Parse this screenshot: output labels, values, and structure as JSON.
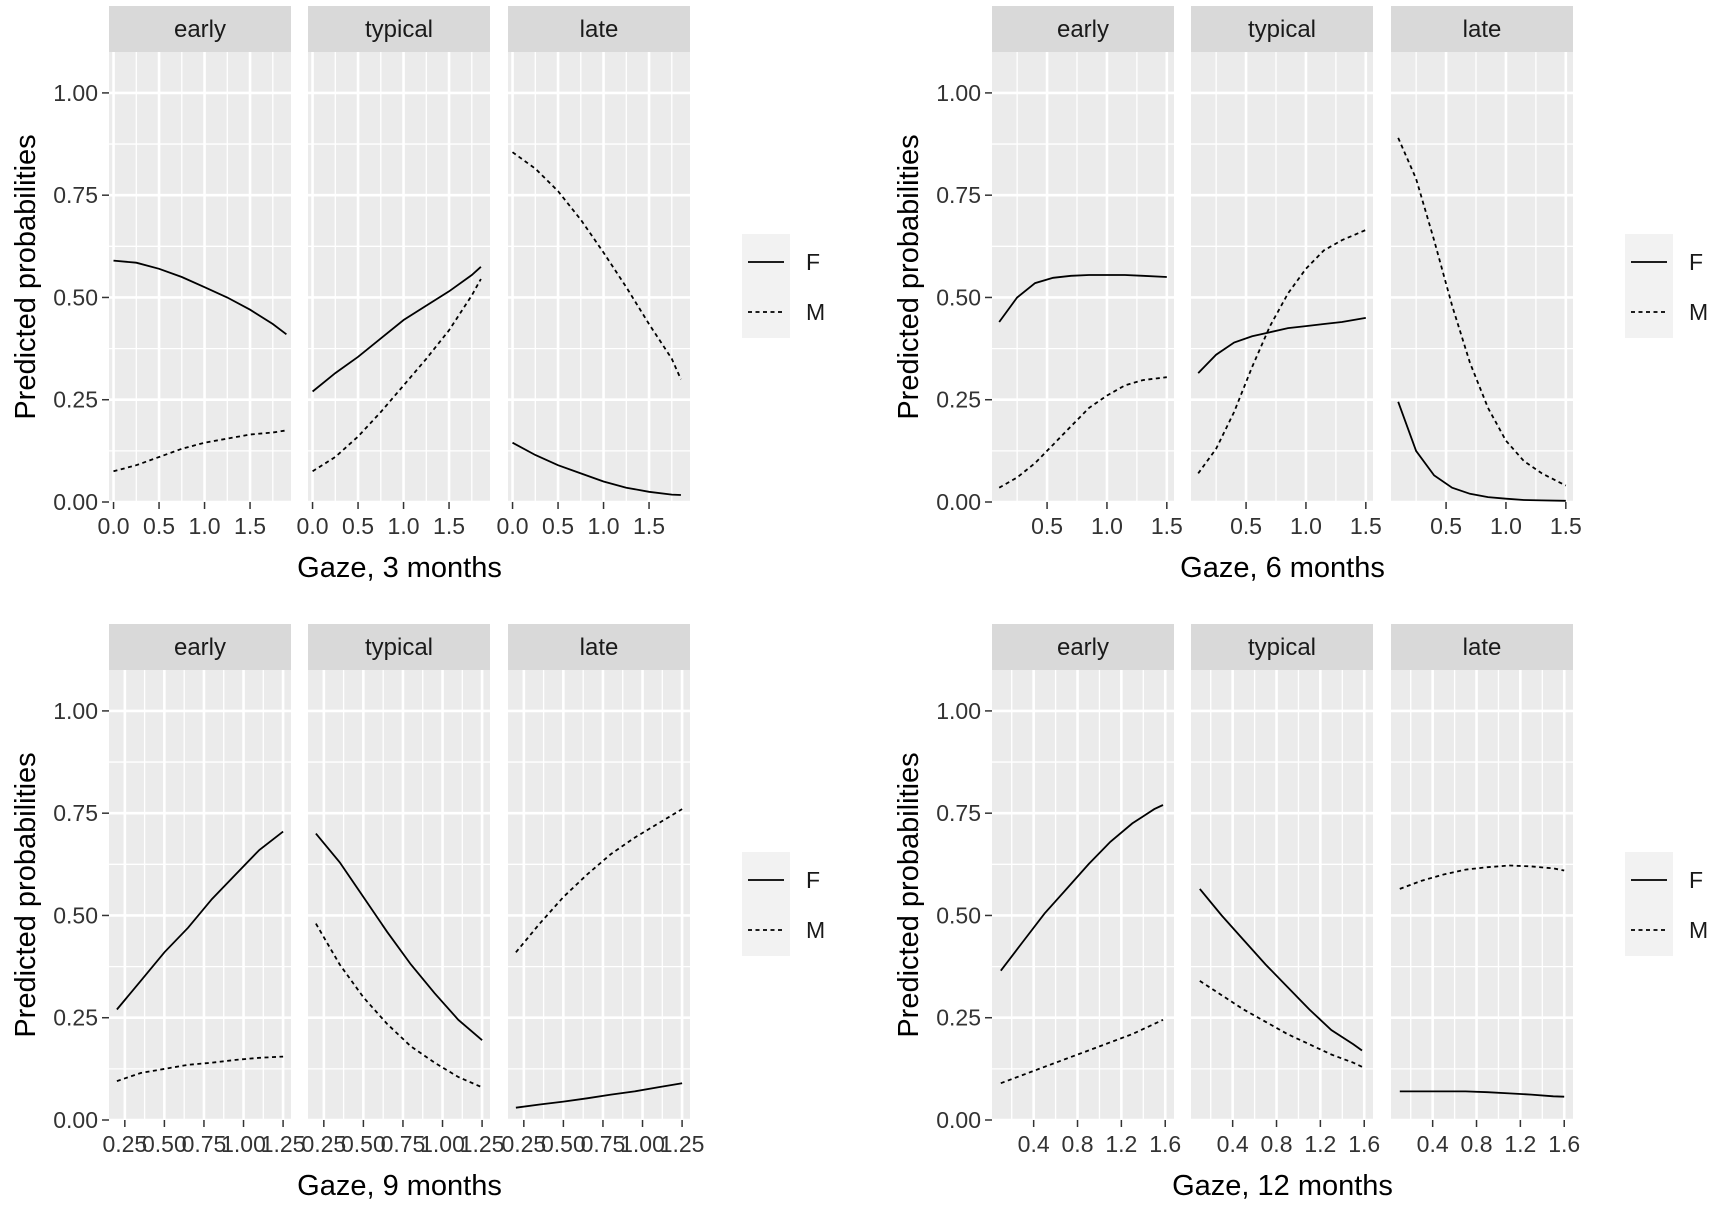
{
  "chart_data": [
    {
      "type": "line",
      "xlabel": "Gaze, 3 months",
      "ylabel": "Predicted probabilities",
      "ylim": [
        0,
        1.1
      ],
      "yticks": [
        "0.00",
        "0.25",
        "0.50",
        "0.75",
        "1.00"
      ],
      "xlim": [
        -0.05,
        1.95
      ],
      "xticks": [
        "0.0",
        "0.5",
        "1.0",
        "1.5"
      ],
      "grid": true,
      "legend": {
        "position": "right",
        "entries": [
          "F",
          "M"
        ]
      },
      "facets": [
        {
          "label": "early",
          "series": [
            {
              "name": "F",
              "x": [
                0.0,
                0.25,
                0.5,
                0.75,
                1.0,
                1.25,
                1.5,
                1.75,
                1.9
              ],
              "values": [
                0.59,
                0.585,
                0.57,
                0.55,
                0.525,
                0.5,
                0.47,
                0.435,
                0.41
              ]
            },
            {
              "name": "M",
              "x": [
                0.0,
                0.25,
                0.5,
                0.75,
                1.0,
                1.25,
                1.5,
                1.75,
                1.9
              ],
              "values": [
                0.075,
                0.09,
                0.11,
                0.13,
                0.145,
                0.155,
                0.165,
                0.17,
                0.175
              ]
            }
          ]
        },
        {
          "label": "typical",
          "series": [
            {
              "name": "F",
              "x": [
                0.0,
                0.25,
                0.5,
                0.75,
                1.0,
                1.25,
                1.5,
                1.75,
                1.85
              ],
              "values": [
                0.27,
                0.315,
                0.355,
                0.4,
                0.445,
                0.48,
                0.515,
                0.555,
                0.575
              ]
            },
            {
              "name": "M",
              "x": [
                0.0,
                0.25,
                0.5,
                0.75,
                1.0,
                1.25,
                1.5,
                1.75,
                1.85
              ],
              "values": [
                0.075,
                0.11,
                0.16,
                0.22,
                0.285,
                0.35,
                0.42,
                0.505,
                0.545
              ]
            }
          ]
        },
        {
          "label": "late",
          "series": [
            {
              "name": "F",
              "x": [
                0.0,
                0.25,
                0.5,
                0.75,
                1.0,
                1.25,
                1.5,
                1.75,
                1.85
              ],
              "values": [
                0.145,
                0.115,
                0.09,
                0.07,
                0.05,
                0.035,
                0.025,
                0.018,
                0.017
              ]
            },
            {
              "name": "M",
              "x": [
                0.0,
                0.25,
                0.5,
                0.75,
                1.0,
                1.25,
                1.5,
                1.75,
                1.85
              ],
              "values": [
                0.855,
                0.815,
                0.76,
                0.69,
                0.61,
                0.525,
                0.435,
                0.35,
                0.3
              ]
            }
          ]
        }
      ]
    },
    {
      "type": "line",
      "xlabel": "Gaze, 6 months",
      "ylabel": "Predicted probabilities",
      "ylim": [
        0,
        1.1
      ],
      "yticks": [
        "0.00",
        "0.25",
        "0.50",
        "0.75",
        "1.00"
      ],
      "xlim": [
        0.04,
        1.56
      ],
      "xticks": [
        "0.5",
        "1.0",
        "1.5"
      ],
      "grid": true,
      "legend": {
        "position": "right",
        "entries": [
          "F",
          "M"
        ]
      },
      "facets": [
        {
          "label": "early",
          "series": [
            {
              "name": "F",
              "x": [
                0.1,
                0.25,
                0.4,
                0.55,
                0.7,
                0.85,
                1.0,
                1.15,
                1.3,
                1.5
              ],
              "values": [
                0.44,
                0.5,
                0.535,
                0.548,
                0.553,
                0.555,
                0.555,
                0.555,
                0.553,
                0.55
              ]
            },
            {
              "name": "M",
              "x": [
                0.1,
                0.25,
                0.4,
                0.55,
                0.7,
                0.85,
                1.0,
                1.15,
                1.3,
                1.5
              ],
              "values": [
                0.035,
                0.06,
                0.095,
                0.14,
                0.185,
                0.23,
                0.26,
                0.285,
                0.298,
                0.305
              ]
            }
          ]
        },
        {
          "label": "typical",
          "series": [
            {
              "name": "F",
              "x": [
                0.1,
                0.25,
                0.4,
                0.55,
                0.7,
                0.85,
                1.0,
                1.15,
                1.3,
                1.5
              ],
              "values": [
                0.315,
                0.36,
                0.39,
                0.405,
                0.415,
                0.425,
                0.43,
                0.435,
                0.44,
                0.45
              ]
            },
            {
              "name": "M",
              "x": [
                0.1,
                0.25,
                0.4,
                0.55,
                0.7,
                0.85,
                1.0,
                1.15,
                1.3,
                1.5
              ],
              "values": [
                0.07,
                0.13,
                0.22,
                0.33,
                0.43,
                0.51,
                0.57,
                0.615,
                0.64,
                0.665
              ]
            }
          ]
        },
        {
          "label": "late",
          "series": [
            {
              "name": "F",
              "x": [
                0.1,
                0.25,
                0.4,
                0.55,
                0.7,
                0.85,
                1.0,
                1.15,
                1.3,
                1.5
              ],
              "values": [
                0.245,
                0.125,
                0.065,
                0.035,
                0.02,
                0.012,
                0.008,
                0.005,
                0.004,
                0.003
              ]
            },
            {
              "name": "M",
              "x": [
                0.1,
                0.25,
                0.4,
                0.55,
                0.7,
                0.85,
                1.0,
                1.15,
                1.3,
                1.5
              ],
              "values": [
                0.89,
                0.79,
                0.64,
                0.48,
                0.34,
                0.23,
                0.15,
                0.1,
                0.07,
                0.04
              ]
            }
          ]
        }
      ]
    },
    {
      "type": "line",
      "xlabel": "Gaze, 9 months",
      "ylabel": "Predicted probabilities",
      "ylim": [
        0,
        1.1
      ],
      "yticks": [
        "0.00",
        "0.25",
        "0.50",
        "0.75",
        "1.00"
      ],
      "xlim": [
        0.15,
        1.3
      ],
      "xticks": [
        "0.25",
        "0.50",
        "0.75",
        "1.00",
        "1.25"
      ],
      "grid": true,
      "legend": {
        "position": "right",
        "entries": [
          "F",
          "M"
        ]
      },
      "facets": [
        {
          "label": "early",
          "series": [
            {
              "name": "F",
              "x": [
                0.2,
                0.35,
                0.5,
                0.65,
                0.8,
                0.95,
                1.1,
                1.25
              ],
              "values": [
                0.27,
                0.34,
                0.41,
                0.47,
                0.54,
                0.6,
                0.66,
                0.705
              ]
            },
            {
              "name": "M",
              "x": [
                0.2,
                0.35,
                0.5,
                0.65,
                0.8,
                0.95,
                1.1,
                1.25
              ],
              "values": [
                0.095,
                0.115,
                0.125,
                0.135,
                0.14,
                0.147,
                0.152,
                0.155
              ]
            }
          ]
        },
        {
          "label": "typical",
          "series": [
            {
              "name": "F",
              "x": [
                0.2,
                0.35,
                0.5,
                0.65,
                0.8,
                0.95,
                1.1,
                1.25
              ],
              "values": [
                0.7,
                0.63,
                0.545,
                0.46,
                0.38,
                0.31,
                0.245,
                0.195
              ]
            },
            {
              "name": "M",
              "x": [
                0.2,
                0.35,
                0.5,
                0.65,
                0.8,
                0.95,
                1.1,
                1.25
              ],
              "values": [
                0.48,
                0.38,
                0.3,
                0.235,
                0.18,
                0.14,
                0.105,
                0.08
              ]
            }
          ]
        },
        {
          "label": "late",
          "series": [
            {
              "name": "F",
              "x": [
                0.2,
                0.35,
                0.5,
                0.65,
                0.8,
                0.95,
                1.1,
                1.25
              ],
              "values": [
                0.03,
                0.038,
                0.045,
                0.053,
                0.062,
                0.07,
                0.08,
                0.09
              ]
            },
            {
              "name": "M",
              "x": [
                0.2,
                0.35,
                0.5,
                0.65,
                0.8,
                0.95,
                1.1,
                1.25
              ],
              "values": [
                0.41,
                0.48,
                0.545,
                0.6,
                0.65,
                0.69,
                0.725,
                0.76
              ]
            }
          ]
        }
      ]
    },
    {
      "type": "line",
      "xlabel": "Gaze, 12 months",
      "ylabel": "Predicted probabilities",
      "ylim": [
        0,
        1.1
      ],
      "yticks": [
        "0.00",
        "0.25",
        "0.50",
        "0.75",
        "1.00"
      ],
      "xlim": [
        0.02,
        1.68
      ],
      "xticks": [
        "0.4",
        "0.8",
        "1.2",
        "1.6"
      ],
      "grid": true,
      "legend": {
        "position": "right",
        "entries": [
          "F",
          "M"
        ]
      },
      "facets": [
        {
          "label": "early",
          "series": [
            {
              "name": "F",
              "x": [
                0.1,
                0.3,
                0.5,
                0.7,
                0.9,
                1.1,
                1.3,
                1.5,
                1.58
              ],
              "values": [
                0.365,
                0.435,
                0.505,
                0.565,
                0.625,
                0.68,
                0.725,
                0.76,
                0.77
              ]
            },
            {
              "name": "M",
              "x": [
                0.1,
                0.3,
                0.5,
                0.7,
                0.9,
                1.1,
                1.3,
                1.5,
                1.58
              ],
              "values": [
                0.09,
                0.11,
                0.13,
                0.15,
                0.17,
                0.19,
                0.21,
                0.235,
                0.245
              ]
            }
          ]
        },
        {
          "label": "typical",
          "series": [
            {
              "name": "F",
              "x": [
                0.1,
                0.3,
                0.5,
                0.7,
                0.9,
                1.1,
                1.3,
                1.5,
                1.58
              ],
              "values": [
                0.565,
                0.5,
                0.44,
                0.38,
                0.325,
                0.27,
                0.22,
                0.185,
                0.17
              ]
            },
            {
              "name": "M",
              "x": [
                0.1,
                0.3,
                0.5,
                0.7,
                0.9,
                1.1,
                1.3,
                1.5,
                1.58
              ],
              "values": [
                0.34,
                0.305,
                0.27,
                0.24,
                0.21,
                0.185,
                0.16,
                0.14,
                0.13
              ]
            }
          ]
        },
        {
          "label": "late",
          "series": [
            {
              "name": "F",
              "x": [
                0.1,
                0.3,
                0.5,
                0.7,
                0.9,
                1.1,
                1.3,
                1.5,
                1.6
              ],
              "values": [
                0.07,
                0.07,
                0.07,
                0.07,
                0.068,
                0.065,
                0.062,
                0.058,
                0.057
              ]
            },
            {
              "name": "M",
              "x": [
                0.1,
                0.3,
                0.5,
                0.7,
                0.9,
                1.1,
                1.3,
                1.5,
                1.6
              ],
              "values": [
                0.565,
                0.585,
                0.6,
                0.612,
                0.618,
                0.622,
                0.62,
                0.615,
                0.61
              ]
            }
          ]
        }
      ]
    }
  ]
}
